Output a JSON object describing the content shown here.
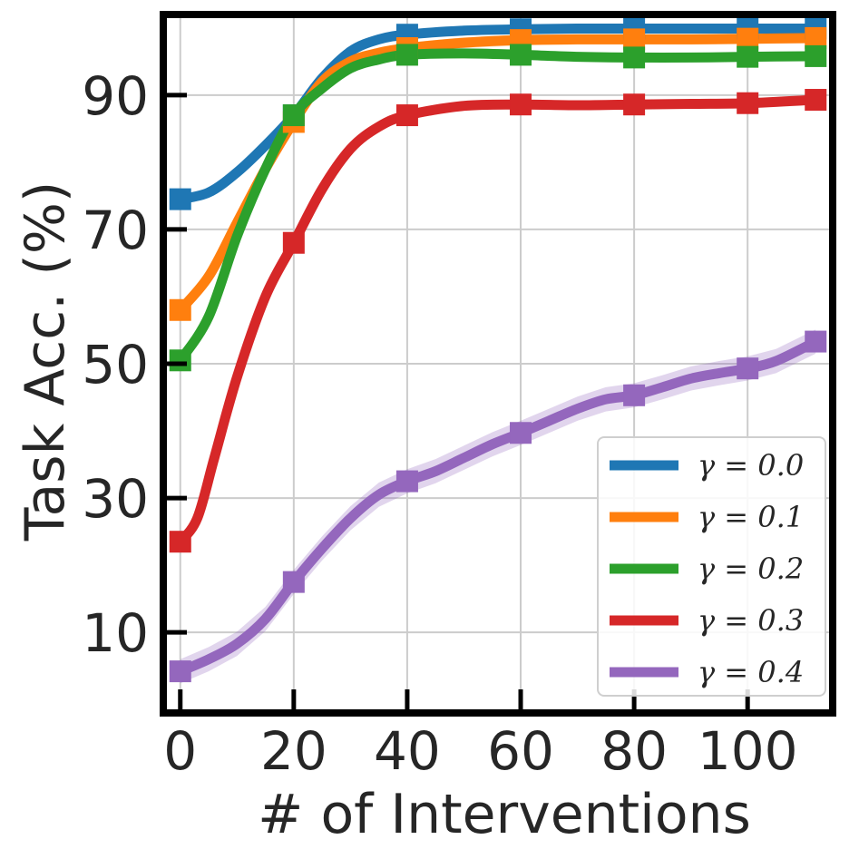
{
  "chart_data": {
    "type": "line",
    "title": "",
    "xlabel": "# of Interventions",
    "ylabel": "Task Acc. (%)",
    "xlim": [
      -3,
      115
    ],
    "ylim": [
      -2,
      102
    ],
    "xticks": [
      0,
      20,
      40,
      60,
      80,
      100
    ],
    "xtick_labels": [
      "0",
      "20",
      "40",
      "60",
      "80",
      "100"
    ],
    "yticks": [
      10,
      30,
      50,
      70,
      90
    ],
    "ytick_labels": [
      "10",
      "30",
      "50",
      "70",
      "90"
    ],
    "grid": true,
    "legend_position": "lower-right",
    "marker": "square",
    "series": [
      {
        "name": "γ = 0.0",
        "color": "#1f77b4",
        "x": [
          0,
          5,
          10,
          15,
          20,
          25,
          30,
          35,
          40,
          50,
          60,
          70,
          80,
          90,
          100,
          112
        ],
        "y": [
          74.5,
          75.5,
          78.5,
          82.5,
          87,
          92.5,
          96.5,
          98.3,
          99,
          99.6,
          99.8,
          99.9,
          99.9,
          99.9,
          99.9,
          99.9
        ],
        "markers_x": [
          0,
          20,
          40,
          60,
          80,
          100,
          112
        ],
        "markers_y": [
          74.5,
          87,
          99,
          99.8,
          99.9,
          99.9,
          99.9
        ],
        "band": 0.3
      },
      {
        "name": "γ = 0.1",
        "color": "#ff7f0e",
        "x": [
          0,
          5,
          10,
          15,
          20,
          25,
          30,
          35,
          40,
          50,
          60,
          70,
          80,
          90,
          100,
          112
        ],
        "y": [
          58,
          63,
          71,
          79,
          86,
          92,
          95,
          96.3,
          97,
          97.8,
          98.2,
          98.3,
          98.3,
          98.3,
          98.4,
          98.5
        ],
        "markers_x": [
          0,
          20,
          40,
          60,
          80,
          100,
          112
        ],
        "markers_y": [
          58,
          86,
          97,
          98.2,
          98.3,
          98.4,
          98.5
        ],
        "band": 0.8
      },
      {
        "name": "γ = 0.2",
        "color": "#2ca02c",
        "x": [
          0,
          5,
          10,
          15,
          20,
          25,
          30,
          35,
          40,
          50,
          60,
          70,
          80,
          90,
          100,
          112
        ],
        "y": [
          50.5,
          57,
          69,
          79,
          87,
          91,
          94,
          95.3,
          96,
          96.2,
          96,
          95.7,
          95.6,
          95.6,
          95.7,
          95.8
        ],
        "markers_x": [
          0,
          20,
          40,
          60,
          80,
          100,
          112
        ],
        "markers_y": [
          50.5,
          87,
          96,
          96,
          95.6,
          95.7,
          95.8
        ],
        "band": 0.5
      },
      {
        "name": "γ = 0.3",
        "color": "#d62728",
        "x": [
          0,
          3,
          6,
          10,
          15,
          20,
          25,
          30,
          35,
          40,
          50,
          60,
          70,
          80,
          90,
          100,
          112
        ],
        "y": [
          23.5,
          27,
          36,
          48,
          60,
          68,
          76,
          82,
          85.3,
          87,
          88.4,
          88.6,
          88.5,
          88.6,
          88.7,
          88.8,
          89.3
        ],
        "markers_x": [
          0,
          20,
          40,
          60,
          80,
          100,
          112
        ],
        "markers_y": [
          23.5,
          68,
          87,
          88.6,
          88.6,
          88.8,
          89.3
        ],
        "band": 0.6
      },
      {
        "name": "γ = 0.4",
        "color": "#9467bd",
        "x": [
          0,
          5,
          10,
          15,
          20,
          25,
          30,
          35,
          40,
          45,
          50,
          55,
          60,
          65,
          70,
          75,
          80,
          85,
          90,
          95,
          100,
          105,
          112
        ],
        "y": [
          4.2,
          6,
          8.3,
          12,
          17.5,
          22.5,
          27,
          30.5,
          32.5,
          34,
          36,
          38,
          39.7,
          41.5,
          43.3,
          44.7,
          45.3,
          46.5,
          47.8,
          48.6,
          49.3,
          50.4,
          53.3
        ],
        "markers_x": [
          0,
          20,
          40,
          60,
          80,
          100,
          112
        ],
        "markers_y": [
          4.2,
          17.5,
          32.5,
          39.7,
          45.3,
          49.3,
          53.3
        ],
        "band": 1.8
      }
    ]
  }
}
